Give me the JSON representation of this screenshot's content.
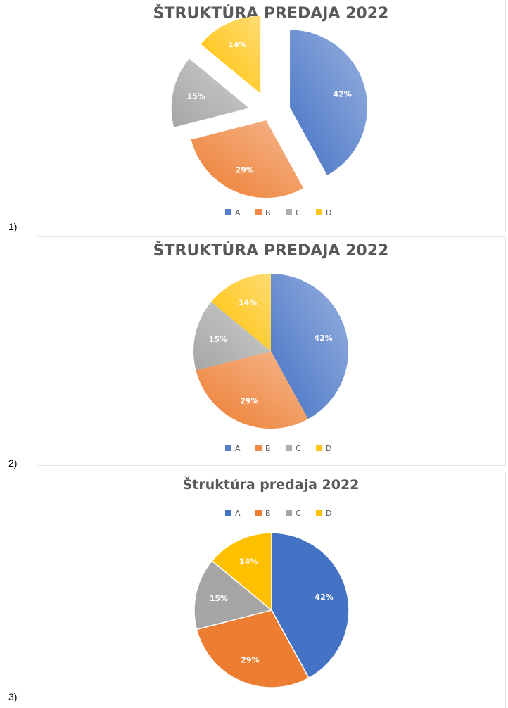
{
  "figure_labels": [
    "1)",
    "2)",
    "3)"
  ],
  "legend_markers": [
    "A",
    "B",
    "C",
    "D"
  ],
  "colors": {
    "A": "#4472C4",
    "B": "#ED7D31",
    "C": "#A5A5A5",
    "D": "#FFC000",
    "title_dark": "#595959",
    "legend_text": "#595959",
    "label_text": "#ffffff"
  },
  "chart_data": [
    {
      "type": "pie",
      "style": "exploded-gradient",
      "title": "ŠTRUKTÚRA PREDAJA 2022",
      "categories": [
        "A",
        "B",
        "C",
        "D"
      ],
      "values": [
        42,
        29,
        15,
        14
      ],
      "data_labels": [
        "42%",
        "29%",
        "15%",
        "14%"
      ],
      "legend": "bottom"
    },
    {
      "type": "pie",
      "style": "gradient",
      "title": "ŠTRUKTÚRA PREDAJA 2022",
      "categories": [
        "A",
        "B",
        "C",
        "D"
      ],
      "values": [
        42,
        29,
        15,
        14
      ],
      "data_labels": [
        "42%",
        "29%",
        "15%",
        "14%"
      ],
      "legend": "bottom"
    },
    {
      "type": "pie",
      "style": "flat",
      "title": "Štruktúra predaja 2022",
      "categories": [
        "A",
        "B",
        "C",
        "D"
      ],
      "values": [
        42,
        29,
        15,
        14
      ],
      "data_labels": [
        "42%",
        "29%",
        "15%",
        "14%"
      ],
      "legend": "top"
    }
  ]
}
